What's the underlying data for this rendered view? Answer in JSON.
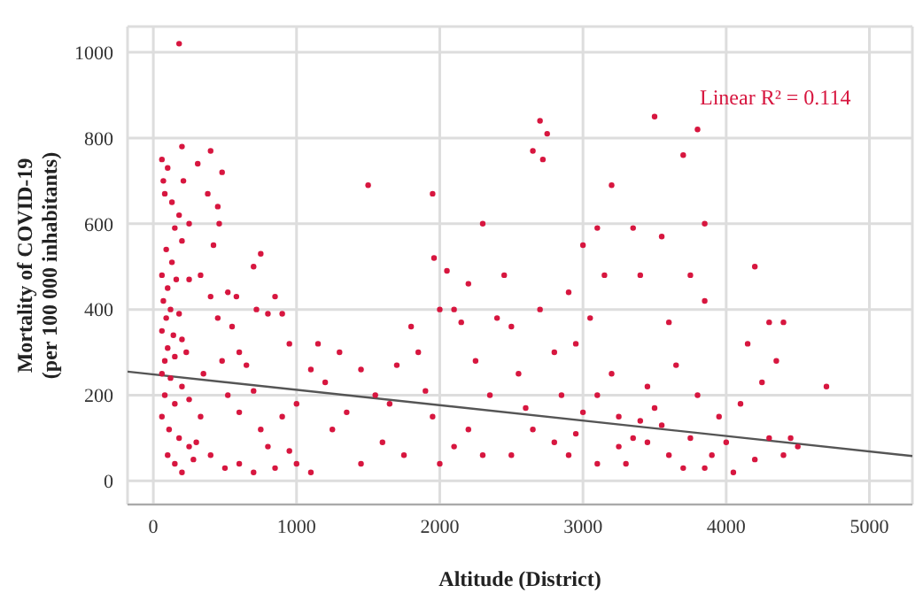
{
  "chart_data": {
    "type": "scatter",
    "xlabel": "Altitude (District)",
    "ylabel": "Mortality of COVID-19\n(per 100 000 inhabitants)",
    "annotations": [
      "Linear R² = 0.114"
    ],
    "xlim": [
      -180,
      5300
    ],
    "xticks": [
      0,
      1000,
      2000,
      3000,
      4000,
      5000
    ],
    "ylim": [
      -55,
      1060
    ],
    "yticks": [
      0,
      200,
      400,
      600,
      800,
      1000
    ],
    "grid": true,
    "legend": false,
    "series": [
      {
        "marker": "circle",
        "color": "#d7163f",
        "x": [
          180,
          60,
          100,
          70,
          200,
          210,
          80,
          130,
          180,
          150,
          250,
          90,
          130,
          200,
          60,
          100,
          160,
          250,
          70,
          120,
          90,
          180,
          60,
          140,
          100,
          200,
          80,
          150,
          230,
          60,
          120,
          200,
          80,
          150,
          250,
          60,
          110,
          180,
          250,
          100,
          150,
          200,
          280,
          300,
          330,
          350,
          400,
          380,
          450,
          420,
          460,
          480,
          310,
          330,
          400,
          520,
          580,
          450,
          550,
          600,
          650,
          700,
          750,
          720,
          800,
          850,
          900,
          950,
          480,
          520,
          600,
          700,
          750,
          800,
          900,
          950,
          1000,
          400,
          500,
          600,
          700,
          850,
          1000,
          1100,
          1150,
          1100,
          1200,
          1300,
          1250,
          1350,
          1450,
          1500,
          1550,
          1600,
          1450,
          1700,
          1650,
          1750,
          1800,
          1850,
          1900,
          1950,
          1960,
          2000,
          2050,
          2100,
          2150,
          1950,
          2000,
          2100,
          2200,
          2250,
          2300,
          2200,
          2300,
          2350,
          2400,
          2450,
          2500,
          2550,
          2600,
          2650,
          2700,
          2720,
          2750,
          2700,
          2650,
          2500,
          2800,
          2850,
          2900,
          2950,
          3000,
          3050,
          3100,
          3000,
          2900,
          2950,
          3100,
          3200,
          3150,
          3200,
          3250,
          3300,
          3350,
          3400,
          3450,
          3500,
          3550,
          3450,
          3500,
          3350,
          3600,
          3650,
          3700,
          3750,
          3800,
          3850,
          3850,
          3800,
          3750,
          3900,
          3950,
          3700,
          3600,
          3850,
          4050,
          4100,
          4150,
          4200,
          4250,
          4300,
          4350,
          4400,
          4450,
          4500,
          4700,
          4200,
          4300,
          4400,
          4000,
          3550,
          3250,
          3100,
          2800,
          3400
        ],
        "values": [
          1020,
          750,
          730,
          700,
          780,
          700,
          670,
          650,
          620,
          590,
          600,
          540,
          510,
          560,
          480,
          450,
          470,
          470,
          420,
          400,
          380,
          390,
          350,
          340,
          310,
          330,
          280,
          290,
          300,
          250,
          240,
          220,
          200,
          180,
          190,
          150,
          120,
          100,
          80,
          60,
          40,
          20,
          50,
          90,
          150,
          250,
          770,
          670,
          640,
          550,
          600,
          720,
          740,
          480,
          430,
          440,
          430,
          380,
          360,
          300,
          270,
          500,
          530,
          400,
          390,
          430,
          390,
          320,
          280,
          200,
          160,
          210,
          120,
          80,
          150,
          70,
          180,
          60,
          30,
          40,
          20,
          30,
          40,
          20,
          320,
          260,
          230,
          300,
          120,
          160,
          260,
          690,
          200,
          90,
          40,
          270,
          180,
          60,
          360,
          300,
          210,
          670,
          520,
          400,
          490,
          400,
          370,
          150,
          40,
          80,
          460,
          280,
          600,
          120,
          60,
          200,
          380,
          480,
          360,
          250,
          170,
          770,
          840,
          750,
          810,
          400,
          120,
          60,
          300,
          200,
          440,
          320,
          550,
          380,
          590,
          160,
          60,
          110,
          40,
          690,
          480,
          250,
          150,
          40,
          590,
          480,
          220,
          850,
          570,
          90,
          170,
          100,
          370,
          270,
          760,
          480,
          820,
          600,
          420,
          200,
          100,
          60,
          150,
          30,
          60,
          30,
          20,
          180,
          320,
          500,
          230,
          370,
          280,
          370,
          100,
          80,
          220,
          50,
          100,
          60,
          90,
          130,
          80,
          200,
          90,
          140
        ]
      },
      {
        "type": "line",
        "color": "#555555",
        "x": [
          -180,
          5300
        ],
        "values": [
          255,
          58
        ]
      }
    ]
  }
}
